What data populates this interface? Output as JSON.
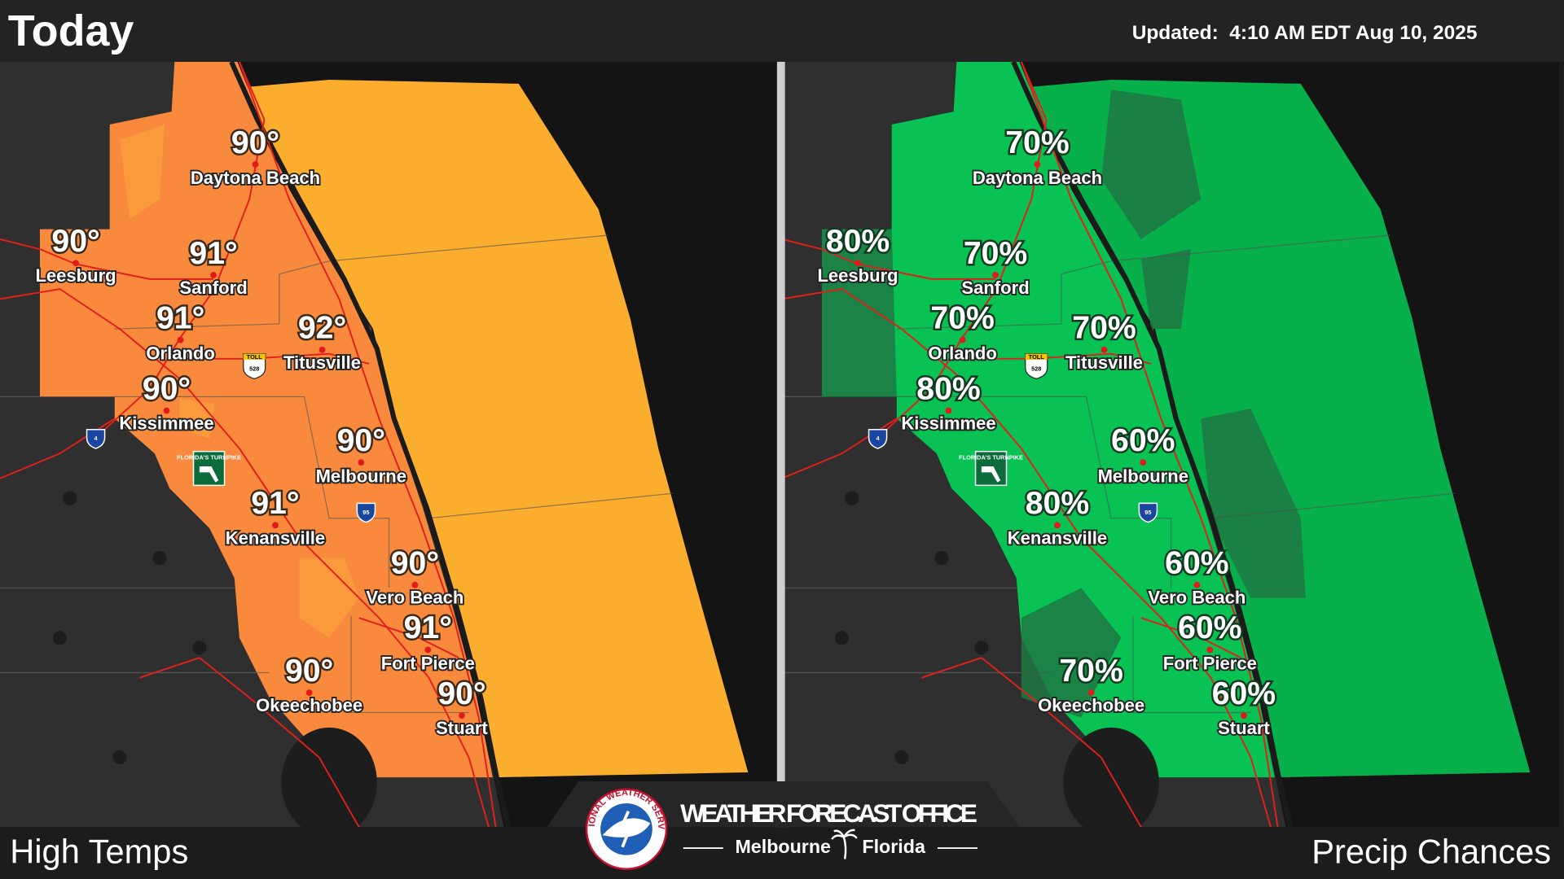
{
  "header": {
    "title": "Today",
    "updated": "Updated:  4:10 AM EDT Aug 10, 2025"
  },
  "cities": [
    "Daytona Beach",
    "Leesburg",
    "Sanford",
    "Orlando",
    "Titusville",
    "Kissimmee",
    "Melbourne",
    "Kenansville",
    "Vero Beach",
    "Fort Pierce",
    "Okeechobee",
    "Stuart"
  ],
  "panels": [
    {
      "title": "High Temps",
      "values": [
        "90°",
        "90°",
        "91°",
        "91°",
        "92°",
        "90°",
        "90°",
        "91°",
        "90°",
        "91°",
        "90°",
        "90°"
      ]
    },
    {
      "title": "Precip Chances",
      "values": [
        "70%",
        "80%",
        "70%",
        "70%",
        "70%",
        "80%",
        "60%",
        "80%",
        "60%",
        "60%",
        "70%",
        "60%"
      ]
    }
  ],
  "shields": {
    "toll": "TOLL",
    "state_road": "528",
    "interstate_4": "4",
    "interstate_95": "95",
    "turnpike": "FLORIDA'S TURNPIKE"
  },
  "footer": {
    "seal": "NATIONAL WEATHER SERVICE",
    "office": "WEATHER FORECAST OFFICE",
    "city": "Melbourne",
    "state": "Florida"
  }
}
